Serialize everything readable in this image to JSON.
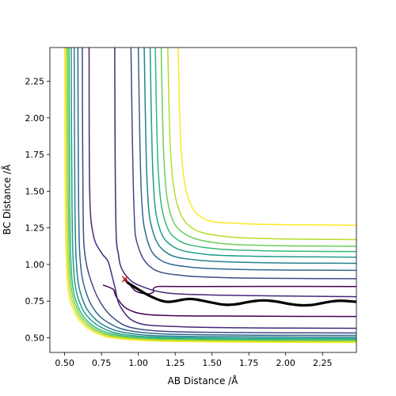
{
  "chart_data": {
    "type": "contour",
    "xlabel": "AB Distance /Å",
    "ylabel": "BC Distance /Å",
    "xlim": [
      0.4,
      2.48
    ],
    "ylim": [
      0.4,
      2.48
    ],
    "xticks": [
      0.5,
      0.75,
      1.0,
      1.25,
      1.5,
      1.75,
      2.0,
      2.25
    ],
    "xtick_labels": [
      "0.50",
      "0.75",
      "1.00",
      "1.25",
      "1.50",
      "1.75",
      "2.00",
      "2.25"
    ],
    "yticks": [
      0.5,
      0.75,
      1.0,
      1.25,
      1.5,
      1.75,
      2.0,
      2.25
    ],
    "ytick_labels": [
      "0.50",
      "0.75",
      "1.00",
      "1.25",
      "1.50",
      "1.75",
      "2.00",
      "2.25"
    ],
    "grid": false,
    "colormap": "viridis",
    "contour_colors": [
      "#440154",
      "#482878",
      "#3e4989",
      "#31688e",
      "#26828e",
      "#1f9e89",
      "#35b779",
      "#6ece58",
      "#b5de2b",
      "#fde725"
    ],
    "contours": [
      {
        "level_index": 0,
        "x": [
          0.76,
          0.83,
          0.85,
          0.92,
          1.05,
          1.3,
          1.7,
          2.1,
          2.48
        ],
        "y": [
          0.86,
          0.83,
          0.78,
          0.7,
          0.66,
          0.65,
          0.648,
          0.646,
          0.645
        ]
      },
      {
        "level_index": 0,
        "x": [
          2.48,
          1.3,
          1.12,
          1.1,
          1.05,
          0.98,
          0.93
        ],
        "y": [
          0.85,
          0.85,
          0.846,
          0.81,
          0.8,
          0.82,
          0.88
        ]
      },
      {
        "level_index": 1,
        "x": [
          0.84,
          0.843,
          0.85,
          0.865,
          0.88,
          0.92,
          1.0,
          1.2,
          1.6,
          2.0,
          2.48
        ],
        "y": [
          2.48,
          1.7,
          1.2,
          1.07,
          0.99,
          0.92,
          0.86,
          0.805,
          0.79,
          0.785,
          0.78
        ]
      },
      {
        "level_index": 1,
        "x": [
          0.666,
          0.67,
          0.695,
          0.75,
          0.79,
          0.81,
          0.84,
          0.88,
          1.0,
          1.3,
          1.7,
          2.1,
          2.48
        ],
        "y": [
          2.48,
          1.5,
          1.2,
          1.08,
          1.03,
          0.97,
          0.85,
          0.71,
          0.6,
          0.575,
          0.568,
          0.566,
          0.565
        ]
      },
      {
        "level_index": 2,
        "x": [
          0.62,
          0.625,
          0.64,
          0.7,
          0.77,
          0.85,
          0.95,
          1.15,
          1.5,
          2.0,
          2.48
        ],
        "y": [
          2.48,
          1.4,
          1.05,
          0.83,
          0.7,
          0.62,
          0.57,
          0.545,
          0.537,
          0.534,
          0.533
        ]
      },
      {
        "level_index": 3,
        "x": [
          0.59,
          0.595,
          0.61,
          0.66,
          0.73,
          0.82,
          0.93,
          1.15,
          1.5,
          2.0,
          2.48
        ],
        "y": [
          2.48,
          1.4,
          0.98,
          0.77,
          0.655,
          0.59,
          0.55,
          0.527,
          0.52,
          0.517,
          0.516
        ]
      },
      {
        "level_index": 4,
        "x": [
          0.565,
          0.57,
          0.585,
          0.63,
          0.7,
          0.79,
          0.9,
          1.1,
          1.5,
          2.0,
          2.48
        ],
        "y": [
          2.48,
          1.4,
          0.94,
          0.74,
          0.635,
          0.572,
          0.537,
          0.515,
          0.508,
          0.505,
          0.504
        ]
      },
      {
        "level_index": 5,
        "x": [
          0.545,
          0.55,
          0.565,
          0.61,
          0.68,
          0.77,
          0.88,
          1.1,
          1.5,
          2.0,
          2.48
        ],
        "y": [
          2.48,
          1.4,
          0.92,
          0.72,
          0.62,
          0.56,
          0.526,
          0.505,
          0.498,
          0.495,
          0.494
        ]
      },
      {
        "level_index": 6,
        "x": [
          0.53,
          0.535,
          0.55,
          0.595,
          0.665,
          0.755,
          0.87,
          1.1,
          1.5,
          2.0,
          2.48
        ],
        "y": [
          2.48,
          1.4,
          0.9,
          0.705,
          0.605,
          0.548,
          0.517,
          0.497,
          0.49,
          0.487,
          0.486
        ]
      },
      {
        "level_index": 7,
        "x": [
          0.52,
          0.525,
          0.54,
          0.585,
          0.655,
          0.745,
          0.86,
          1.1,
          1.5,
          2.0,
          2.48
        ],
        "y": [
          2.48,
          1.4,
          0.89,
          0.695,
          0.597,
          0.54,
          0.51,
          0.49,
          0.483,
          0.48,
          0.479
        ]
      },
      {
        "level_index": 8,
        "x": [
          0.51,
          0.515,
          0.53,
          0.575,
          0.645,
          0.735,
          0.85,
          1.1,
          1.5,
          2.0,
          2.48
        ],
        "y": [
          2.48,
          1.4,
          0.88,
          0.688,
          0.59,
          0.534,
          0.504,
          0.485,
          0.478,
          0.475,
          0.474
        ]
      },
      {
        "level_index": 9,
        "x": [
          0.5,
          0.505,
          0.52,
          0.565,
          0.635,
          0.725,
          0.84,
          1.1,
          1.5,
          2.0,
          2.48
        ],
        "y": [
          2.48,
          1.4,
          0.87,
          0.68,
          0.583,
          0.527,
          0.498,
          0.479,
          0.472,
          0.469,
          0.468
        ]
      },
      {
        "level_index": 2,
        "x": [
          0.95,
          0.97,
          1.0,
          1.1,
          1.3,
          1.6,
          2.0,
          2.48
        ],
        "y": [
          2.48,
          1.4,
          1.12,
          0.97,
          0.925,
          0.91,
          0.905,
          0.903
        ]
      },
      {
        "level_index": 3,
        "x": [
          1.0,
          1.02,
          1.06,
          1.15,
          1.35,
          1.65,
          2.0,
          2.48
        ],
        "y": [
          2.48,
          1.5,
          1.17,
          1.03,
          0.982,
          0.967,
          0.962,
          0.96
        ]
      },
      {
        "level_index": 4,
        "x": [
          1.04,
          1.06,
          1.1,
          1.2,
          1.4,
          1.7,
          2.0,
          2.48
        ],
        "y": [
          2.48,
          1.55,
          1.22,
          1.075,
          1.03,
          1.015,
          1.01,
          1.008
        ]
      },
      {
        "level_index": 5,
        "x": [
          1.08,
          1.1,
          1.14,
          1.24,
          1.45,
          1.75,
          2.05,
          2.48
        ],
        "y": [
          2.48,
          1.6,
          1.26,
          1.12,
          1.07,
          1.057,
          1.053,
          1.05
        ]
      },
      {
        "level_index": 6,
        "x": [
          1.115,
          1.135,
          1.18,
          1.28,
          1.5,
          1.8,
          2.1,
          2.48
        ],
        "y": [
          2.48,
          1.65,
          1.3,
          1.16,
          1.11,
          1.095,
          1.09,
          1.088
        ]
      },
      {
        "level_index": 7,
        "x": [
          1.155,
          1.175,
          1.22,
          1.33,
          1.55,
          1.85,
          2.15,
          2.48
        ],
        "y": [
          2.48,
          1.7,
          1.34,
          1.2,
          1.145,
          1.13,
          1.126,
          1.124
        ]
      },
      {
        "level_index": 8,
        "x": [
          1.2,
          1.22,
          1.27,
          1.38,
          1.6,
          1.9,
          2.2,
          2.48
        ],
        "y": [
          2.48,
          1.75,
          1.39,
          1.24,
          1.19,
          1.176,
          1.172,
          1.17
        ]
      },
      {
        "level_index": 9,
        "x": [
          1.27,
          1.29,
          1.34,
          1.45,
          1.68,
          1.98,
          2.25,
          2.48
        ],
        "y": [
          2.48,
          1.8,
          1.45,
          1.31,
          1.28,
          1.272,
          1.27,
          1.268
        ]
      }
    ],
    "trajectory": {
      "x": [
        0.91,
        0.93,
        0.96,
        1.0,
        1.05,
        1.1,
        1.15,
        1.2,
        1.25,
        1.3,
        1.35,
        1.4,
        1.45,
        1.5,
        1.55,
        1.6,
        1.65,
        1.7,
        1.75,
        1.8,
        1.85,
        1.9,
        1.95,
        2.0,
        2.05,
        2.1,
        2.15,
        2.2,
        2.25,
        2.3,
        2.35,
        2.4,
        2.48
      ],
      "y": [
        0.9,
        0.875,
        0.855,
        0.83,
        0.8,
        0.775,
        0.755,
        0.745,
        0.75,
        0.76,
        0.765,
        0.76,
        0.75,
        0.74,
        0.73,
        0.725,
        0.727,
        0.735,
        0.745,
        0.752,
        0.755,
        0.752,
        0.745,
        0.735,
        0.727,
        0.722,
        0.722,
        0.727,
        0.737,
        0.746,
        0.752,
        0.752,
        0.745
      ]
    },
    "start_marker": {
      "x": 0.91,
      "y": 0.9,
      "marker": "x",
      "color": "#d62728"
    }
  }
}
